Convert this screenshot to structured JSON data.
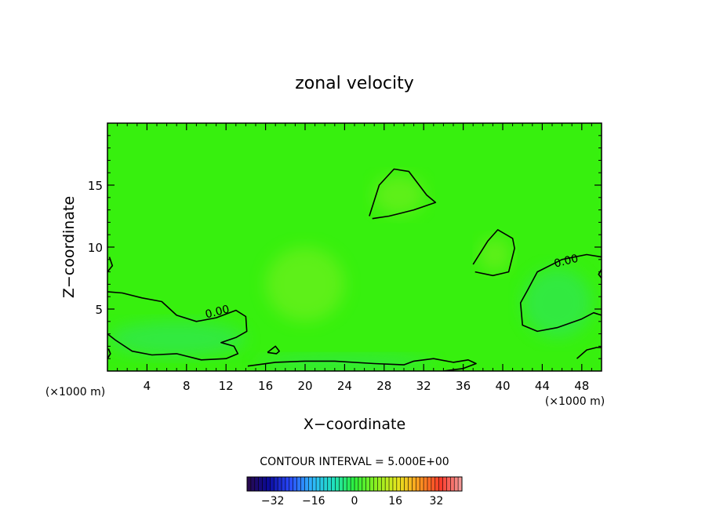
{
  "chart_data": {
    "type": "heatmap",
    "title": "zonal velocity",
    "xlabel": "X−coordinate",
    "ylabel": "Z−coordinate",
    "x_unit_left": "(×1000 m)",
    "x_unit_right": "(×1000 m)",
    "xlim": [
      0,
      50
    ],
    "ylim": [
      0,
      20
    ],
    "x_ticks": [
      4,
      8,
      12,
      16,
      20,
      24,
      28,
      32,
      36,
      40,
      44,
      48
    ],
    "x_tick_labels": [
      "4",
      "8",
      "12",
      "16",
      "20",
      "24",
      "28",
      "32",
      "36",
      "40",
      "44",
      "48"
    ],
    "y_ticks": [
      5,
      10,
      15
    ],
    "y_tick_labels": [
      "5",
      "10",
      "15"
    ],
    "grid": false,
    "contour_interval_text": "CONTOUR INTERVAL = 5.000E+00",
    "contour_labels": [
      {
        "text": "0.00",
        "x": 11.2,
        "z": 4.5
      },
      {
        "text": "0.00",
        "x": 46.5,
        "z": 8.6
      }
    ],
    "colorbar": {
      "range": [
        -42,
        42
      ],
      "ticks": [
        -32,
        -16,
        0,
        16,
        32
      ],
      "tick_labels": [
        "−32",
        "−16",
        "0",
        "16",
        "32"
      ],
      "colors": [
        "#2a0a4a",
        "#0a0a9a",
        "#2a4aff",
        "#2fb6ff",
        "#20e0c0",
        "#2cf03a",
        "#8cf020",
        "#e6e61e",
        "#ff9a20",
        "#ff3a2a",
        "#f0a0a0"
      ]
    },
    "field_description_colors": {
      "background": "#37f00e",
      "slightly_negative": "#2ee46a",
      "slightly_positive": "#7ef020"
    },
    "zero_contours": [
      [
        [
          0,
          6.4
        ],
        [
          1.5,
          6.3
        ],
        [
          3.5,
          5.9
        ],
        [
          5.5,
          5.6
        ],
        [
          7,
          4.5
        ],
        [
          9,
          4.0
        ],
        [
          11,
          4.3
        ],
        [
          13,
          4.9
        ],
        [
          14,
          4.4
        ],
        [
          14.1,
          3.2
        ],
        [
          13,
          2.7
        ],
        [
          11.5,
          2.3
        ],
        [
          12.8,
          2.0
        ],
        [
          13.2,
          1.4
        ],
        [
          12,
          1.0
        ],
        [
          9.5,
          0.9
        ],
        [
          7,
          1.4
        ],
        [
          4.5,
          1.3
        ],
        [
          2.5,
          1.6
        ],
        [
          0.8,
          2.5
        ],
        [
          0,
          3.0
        ]
      ],
      [
        [
          26.5,
          12.5
        ],
        [
          27.5,
          15.0
        ],
        [
          29,
          16.3
        ],
        [
          30.5,
          16.1
        ],
        [
          32.3,
          14.2
        ],
        [
          33.2,
          13.6
        ],
        [
          31,
          13.0
        ],
        [
          28.5,
          12.5
        ],
        [
          26.8,
          12.3
        ]
      ],
      [
        [
          37,
          8.6
        ],
        [
          38.5,
          10.5
        ],
        [
          39.5,
          11.4
        ],
        [
          41,
          10.7
        ],
        [
          41.2,
          9.9
        ],
        [
          40.6,
          8.0
        ],
        [
          39,
          7.7
        ],
        [
          37.2,
          8.0
        ]
      ],
      [
        [
          50,
          9.2
        ],
        [
          48.5,
          9.4
        ],
        [
          46,
          9.0
        ],
        [
          43.5,
          8.0
        ],
        [
          42.5,
          6.5
        ],
        [
          41.8,
          5.5
        ],
        [
          42,
          3.7
        ],
        [
          43.5,
          3.2
        ],
        [
          45.5,
          3.5
        ],
        [
          48,
          4.2
        ],
        [
          49.2,
          4.7
        ],
        [
          50,
          4.5
        ]
      ],
      [
        [
          14.2,
          0.4
        ],
        [
          17,
          0.7
        ],
        [
          20,
          0.8
        ],
        [
          23,
          0.8
        ],
        [
          27,
          0.6
        ],
        [
          30,
          0.5
        ],
        [
          31,
          0.8
        ],
        [
          33,
          1.0
        ],
        [
          35,
          0.7
        ],
        [
          36.5,
          0.9
        ],
        [
          37.3,
          0.6
        ],
        [
          36,
          0.2
        ],
        [
          34,
          0.0
        ]
      ],
      [
        [
          16.2,
          1.5
        ],
        [
          17,
          2.0
        ],
        [
          17.4,
          1.6
        ],
        [
          17.1,
          1.4
        ],
        [
          16.2,
          1.5
        ]
      ],
      [
        [
          47.5,
          1.0
        ],
        [
          48.5,
          1.7
        ],
        [
          49.5,
          1.9
        ],
        [
          50,
          1.9
        ]
      ],
      [
        [
          0,
          1.0
        ],
        [
          0.3,
          1.4
        ],
        [
          0.1,
          1.8
        ]
      ],
      [
        [
          0,
          8.0
        ],
        [
          0.5,
          8.5
        ],
        [
          0.2,
          9.2
        ]
      ],
      [
        [
          50,
          7.5
        ],
        [
          49.7,
          7.8
        ],
        [
          50,
          8.2
        ]
      ]
    ]
  }
}
